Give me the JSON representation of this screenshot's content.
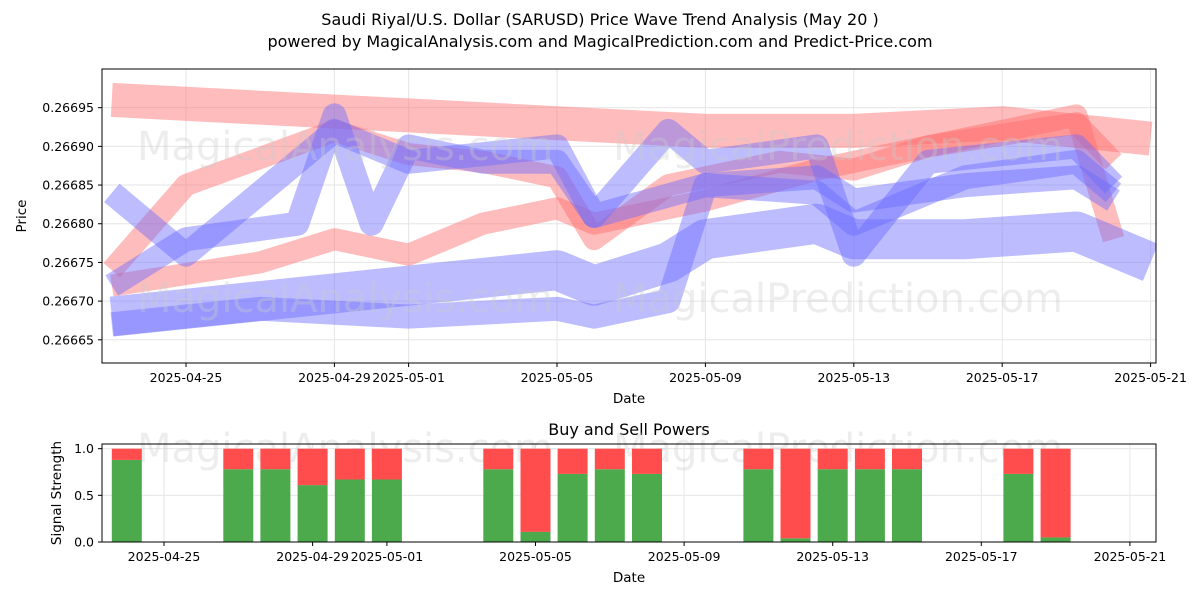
{
  "title_line1": "Saudi Riyal/U.S. Dollar (SARUSD) Price Wave Trend Analysis (May 20 )",
  "title_line2": "powered by MagicalAnalysis.com and MagicalPrediction.com and Predict-Price.com",
  "watermarks": [
    "MagicalAnalysis.com",
    "MagicalPrediction.com"
  ],
  "colors": {
    "red_band": "#ff6b6b",
    "blue_band": "#6b6bff",
    "buy": "#4caa4c",
    "sell": "#ff4c4c",
    "grid": "#e6e6e6"
  },
  "chart_data": [
    {
      "type": "line",
      "title": "",
      "xlabel": "Date",
      "ylabel": "Price",
      "x_ticks": [
        "2025-04-25",
        "2025-04-29",
        "2025-05-01",
        "2025-05-05",
        "2025-05-09",
        "2025-05-13",
        "2025-05-17",
        "2025-05-21"
      ],
      "y_ticks": [
        "0.26665",
        "0.26670",
        "0.26675",
        "0.26680",
        "0.26685",
        "0.26690",
        "0.26695"
      ],
      "xlim": [
        "2025-04-22.7",
        "2025-05-21.4"
      ],
      "ylim": [
        0.26662,
        0.267
      ],
      "grid": true,
      "series": [
        {
          "color": "red",
          "points": [
            [
              "2025-04-23",
              0.26696
            ],
            [
              "2025-04-27",
              0.26695
            ],
            [
              "2025-05-01",
              0.26694
            ],
            [
              "2025-05-05",
              0.26693
            ],
            [
              "2025-05-09",
              0.26692
            ],
            [
              "2025-05-13",
              0.26692
            ],
            [
              "2025-05-17",
              0.26693
            ],
            [
              "2025-05-19",
              0.26692
            ],
            [
              "2025-05-21",
              0.26691
            ]
          ]
        },
        {
          "color": "red",
          "points": [
            [
              "2025-04-23",
              0.26674
            ],
            [
              "2025-04-25",
              0.26685
            ],
            [
              "2025-04-29",
              0.26692
            ],
            [
              "2025-05-01",
              0.26689
            ],
            [
              "2025-05-03",
              0.26688
            ],
            [
              "2025-05-05",
              0.26686
            ],
            [
              "2025-05-06",
              0.26678
            ],
            [
              "2025-05-08",
              0.26685
            ],
            [
              "2025-05-11",
              0.26688
            ],
            [
              "2025-05-13",
              0.26687
            ],
            [
              "2025-05-15",
              0.2669
            ],
            [
              "2025-05-19",
              0.26693
            ],
            [
              "2025-05-20",
              0.26688
            ]
          ]
        },
        {
          "color": "red",
          "points": [
            [
              "2025-04-23",
              0.26672
            ],
            [
              "2025-04-27",
              0.26675
            ],
            [
              "2025-04-29",
              0.26678
            ],
            [
              "2025-05-01",
              0.26676
            ],
            [
              "2025-05-03",
              0.2668
            ],
            [
              "2025-05-05",
              0.26682
            ],
            [
              "2025-05-06",
              0.2668
            ],
            [
              "2025-05-09",
              0.26683
            ],
            [
              "2025-05-12",
              0.26687
            ],
            [
              "2025-05-15",
              0.2669
            ],
            [
              "2025-05-19",
              0.26694
            ],
            [
              "2025-05-20",
              0.26678
            ]
          ]
        },
        {
          "color": "blue",
          "points": [
            [
              "2025-04-23",
              0.26668
            ],
            [
              "2025-04-27",
              0.2667
            ],
            [
              "2025-05-01",
              0.26672
            ],
            [
              "2025-05-05",
              0.26674
            ],
            [
              "2025-05-06",
              0.26672
            ],
            [
              "2025-05-08",
              0.26675
            ],
            [
              "2025-05-09",
              0.26678
            ],
            [
              "2025-05-12",
              0.2668
            ],
            [
              "2025-05-13",
              0.26678
            ],
            [
              "2025-05-16",
              0.26678
            ],
            [
              "2025-05-19",
              0.26679
            ],
            [
              "2025-05-21",
              0.26675
            ]
          ]
        },
        {
          "color": "blue",
          "points": [
            [
              "2025-04-23",
              0.26667
            ],
            [
              "2025-04-27",
              0.26669
            ],
            [
              "2025-05-01",
              0.26668
            ],
            [
              "2025-05-05",
              0.26669
            ],
            [
              "2025-05-06",
              0.26668
            ],
            [
              "2025-05-08",
              0.2667
            ],
            [
              "2025-05-09",
              0.26685
            ],
            [
              "2025-05-12",
              0.26686
            ],
            [
              "2025-05-13",
              0.26683
            ],
            [
              "2025-05-16",
              0.26685
            ],
            [
              "2025-05-19",
              0.26686
            ],
            [
              "2025-05-20",
              0.26683
            ]
          ]
        },
        {
          "color": "blue",
          "points": [
            [
              "2025-04-23",
              0.26672
            ],
            [
              "2025-04-25",
              0.26678
            ],
            [
              "2025-04-28",
              0.2668
            ],
            [
              "2025-04-29",
              0.26694
            ],
            [
              "2025-04-30",
              0.2668
            ],
            [
              "2025-05-01",
              0.2669
            ],
            [
              "2025-05-03",
              0.26688
            ],
            [
              "2025-05-05",
              0.26688
            ],
            [
              "2025-05-06",
              0.26681
            ],
            [
              "2025-05-08",
              0.26692
            ],
            [
              "2025-05-09",
              0.26688
            ],
            [
              "2025-05-12",
              0.2669
            ],
            [
              "2025-05-13",
              0.26676
            ],
            [
              "2025-05-15",
              0.26688
            ],
            [
              "2025-05-19",
              0.2669
            ],
            [
              "2025-05-20",
              0.26685
            ]
          ]
        },
        {
          "color": "blue",
          "points": [
            [
              "2025-04-23",
              0.26684
            ],
            [
              "2025-04-25",
              0.26676
            ],
            [
              "2025-04-29",
              0.26692
            ],
            [
              "2025-05-01",
              0.26688
            ],
            [
              "2025-05-05",
              0.2669
            ],
            [
              "2025-05-06",
              0.26681
            ],
            [
              "2025-05-09",
              0.26685
            ],
            [
              "2025-05-12",
              0.26684
            ],
            [
              "2025-05-13",
              0.2668
            ],
            [
              "2025-05-16",
              0.26686
            ],
            [
              "2025-05-19",
              0.26688
            ],
            [
              "2025-05-20",
              0.26684
            ]
          ]
        }
      ]
    },
    {
      "type": "bar",
      "title": "Buy and Sell Powers",
      "xlabel": "Date",
      "ylabel": "Signal Strength",
      "x_ticks": [
        "2025-04-25",
        "2025-04-29",
        "2025-05-01",
        "2025-05-05",
        "2025-05-09",
        "2025-05-13",
        "2025-05-17",
        "2025-05-21"
      ],
      "y_ticks": [
        "0.0",
        "0.5",
        "1.0"
      ],
      "ylim": [
        0,
        1.05
      ],
      "grid": true,
      "series": [
        {
          "name": "Buy",
          "color": "green"
        },
        {
          "name": "Sell",
          "color": "red"
        }
      ],
      "bars": [
        {
          "date": "2025-04-24",
          "buy": 0.88
        },
        {
          "date": "2025-04-27",
          "buy": 0.78
        },
        {
          "date": "2025-04-28",
          "buy": 0.78
        },
        {
          "date": "2025-04-29",
          "buy": 0.61
        },
        {
          "date": "2025-04-30",
          "buy": 0.67
        },
        {
          "date": "2025-05-01",
          "buy": 0.67
        },
        {
          "date": "2025-05-04",
          "buy": 0.78
        },
        {
          "date": "2025-05-05",
          "buy": 0.11
        },
        {
          "date": "2025-05-06",
          "buy": 0.73
        },
        {
          "date": "2025-05-07",
          "buy": 0.78
        },
        {
          "date": "2025-05-08",
          "buy": 0.73
        },
        {
          "date": "2025-05-11",
          "buy": 0.78
        },
        {
          "date": "2025-05-12",
          "buy": 0.04
        },
        {
          "date": "2025-05-13",
          "buy": 0.78
        },
        {
          "date": "2025-05-14",
          "buy": 0.78
        },
        {
          "date": "2025-05-15",
          "buy": 0.78
        },
        {
          "date": "2025-05-18",
          "buy": 0.73
        },
        {
          "date": "2025-05-19",
          "buy": 0.05
        }
      ]
    }
  ]
}
